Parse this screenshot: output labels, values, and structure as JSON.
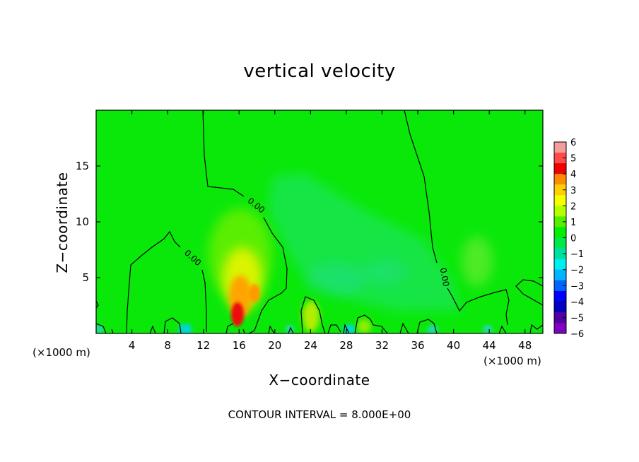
{
  "chart_data": {
    "type": "heatmap",
    "title": "vertical velocity",
    "xlabel": "X−coordinate",
    "ylabel": "Z−coordinate",
    "x_unit_left": "(×1000 m)",
    "x_unit_right": "(×1000 m)",
    "xlim": [
      0,
      50
    ],
    "ylim": [
      0,
      20
    ],
    "x_ticks": [
      "4",
      "8",
      "12",
      "16",
      "20",
      "24",
      "28",
      "32",
      "36",
      "40",
      "44",
      "48"
    ],
    "y_ticks": [
      "5",
      "10",
      "15"
    ],
    "colorbar": {
      "ticks": [
        "6",
        "5",
        "4",
        "3",
        "2",
        "1",
        "0",
        "−1",
        "−2",
        "−3",
        "−4",
        "−5",
        "−6"
      ],
      "range": [
        -6,
        6
      ],
      "colors": [
        "#f49d9d",
        "#ff4a4a",
        "#ee0000",
        "#ff8c00",
        "#ffd000",
        "#f4ff00",
        "#b4ff00",
        "#55ee00",
        "#00f000",
        "#00e84a",
        "#00e0a0",
        "#00f0f0",
        "#00b4ff",
        "#0064ff",
        "#0000ff",
        "#0000c0",
        "#5000a0",
        "#8000c0"
      ]
    },
    "contour_label": "0.00",
    "contour_interval": "CONTOUR INTERVAL = 8.000E+00",
    "features": [
      {
        "x": 15.8,
        "z": 1.5,
        "value": 4.5
      },
      {
        "x": 17.7,
        "z": 3.6,
        "value": 2.8
      },
      {
        "x": 16.3,
        "z": 5.0,
        "value": 1.5
      },
      {
        "x": 24.5,
        "z": 1.7,
        "value": 1.8
      },
      {
        "x": 28.5,
        "z": 5.2,
        "value": -1.0
      },
      {
        "x": 43.0,
        "z": 6.5,
        "value": 0.9
      },
      {
        "x": 24.0,
        "z": 12.0,
        "value": -0.4
      },
      {
        "x": 9.8,
        "z": 0.4,
        "value": -2.0
      },
      {
        "x": 28.8,
        "z": 0.4,
        "value": -1.8
      }
    ]
  }
}
